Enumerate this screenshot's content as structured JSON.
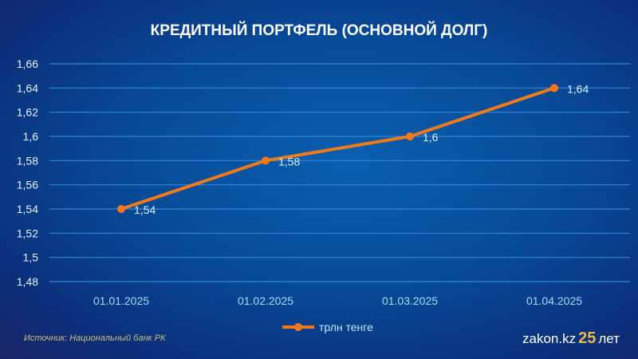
{
  "chart_data": {
    "type": "line",
    "title": "КРЕДИТНЫЙ ПОРТФЕЛЬ (ОСНОВНОЙ ДОЛГ)",
    "categories": [
      "01.01.2025",
      "01.02.2025",
      "01.03.2025",
      "01.04.2025"
    ],
    "series": [
      {
        "name": "трлн тенге",
        "values": [
          1.54,
          1.58,
          1.6,
          1.64
        ],
        "labels": [
          "1,54",
          "1,58",
          "1,6",
          "1,64"
        ],
        "color": "#f07a1a"
      }
    ],
    "ylim": [
      1.48,
      1.66
    ],
    "yticks": [
      "1,48",
      "1,5",
      "1,52",
      "1,54",
      "1,56",
      "1,58",
      "1,6",
      "1,62",
      "1,64",
      "1,66"
    ],
    "grid": true,
    "legend": "bottom"
  },
  "source": "Источник: Национальный банк РК",
  "logo": {
    "text": "zakon.kz",
    "number": "25",
    "suffix": "лет"
  }
}
